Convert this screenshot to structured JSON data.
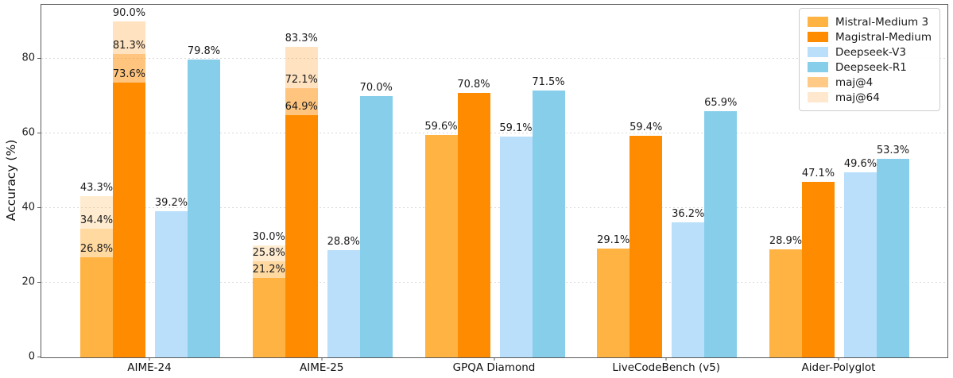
{
  "chart_data": {
    "type": "bar",
    "title": "",
    "xlabel": "",
    "ylabel": "Accuracy (%)",
    "ylim": [
      0,
      94.5
    ],
    "yticks": [
      0,
      20,
      40,
      60,
      80
    ],
    "grid": "horizontal-dotted",
    "legend_position": "upper-right",
    "categories": [
      "AIME-24",
      "AIME-25",
      "GPQA Diamond",
      "LiveCodeBench (v5)",
      "Aider-Polyglot"
    ],
    "series": [
      {
        "name": "Mistral-Medium 3",
        "color": "#ffb342",
        "values": [
          26.8,
          21.2,
          59.6,
          29.1,
          28.9
        ],
        "maj4": [
          34.4,
          25.8,
          null,
          null,
          null
        ],
        "maj64": [
          43.3,
          30.0,
          null,
          null,
          null
        ]
      },
      {
        "name": "Magistral-Medium",
        "color": "#ff8c00",
        "values": [
          73.6,
          64.9,
          70.8,
          59.4,
          47.1
        ],
        "maj4": [
          81.3,
          72.1,
          null,
          null,
          null
        ],
        "maj64": [
          90.0,
          83.3,
          null,
          null,
          null
        ]
      },
      {
        "name": "Deepseek-V3",
        "color": "#b9dffa",
        "values": [
          39.2,
          28.8,
          59.1,
          36.2,
          49.6
        ]
      },
      {
        "name": "Deepseek-R1",
        "color": "#87ceeb",
        "values": [
          79.8,
          70.0,
          71.5,
          65.9,
          53.3
        ]
      }
    ],
    "overlay_legend": [
      {
        "name": "maj@4",
        "swatch": "#ffca85",
        "alpha": 0.5
      },
      {
        "name": "maj@64",
        "swatch": "#ffe8cd",
        "alpha": 0.25
      }
    ],
    "value_label_format": "{v}%"
  }
}
